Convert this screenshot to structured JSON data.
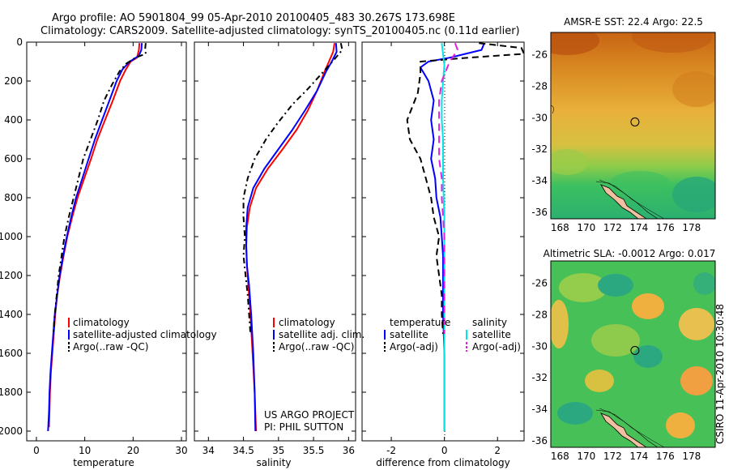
{
  "header": {
    "line1": "Argo profile: AO 5901804_99 05-Apr-2010 20100405_483 30.267S 173.698E",
    "line2": "Climatology: CARS2009. Satellite-adjusted climatology: synTS_20100405.nc (0.11d earlier)"
  },
  "side_stamp": "CSIRO 11-Apr-2010 10:30:48",
  "project_note": [
    "US ARGO PROJECT",
    "PI: PHIL SUTTON"
  ],
  "colors": {
    "climatology": "#ff0000",
    "satellite": "#0000ff",
    "argo": "#000000",
    "sal_satellite": "#00e5e5",
    "sal_argo": "#e020e0"
  },
  "chart_data": [
    {
      "id": "temperature",
      "type": "line",
      "xlabel": "temperature",
      "ylabel": "",
      "xlim": [
        -2,
        31
      ],
      "ylim": [
        2050,
        0
      ],
      "xticks": [
        "0",
        "10",
        "20",
        "30"
      ],
      "xtick_values": [
        0,
        10,
        20,
        30
      ],
      "yticks": [
        "0",
        "200",
        "400",
        "600",
        "800",
        "1000",
        "1200",
        "1400",
        "1600",
        "1800",
        "2000"
      ],
      "ytick_values": [
        0,
        200,
        400,
        600,
        800,
        1000,
        1200,
        1400,
        1600,
        1800,
        2000
      ],
      "legend": [
        "climatology",
        "satellite-adjusted climatology",
        "Argo(..raw -QC)"
      ],
      "series": [
        {
          "name": "climatology",
          "color": "#ff0000",
          "dash": "",
          "points": [
            [
              21.3,
              5
            ],
            [
              21.2,
              40
            ],
            [
              20.8,
              80
            ],
            [
              19.5,
              100
            ],
            [
              18.5,
              140
            ],
            [
              17.3,
              200
            ],
            [
              15.8,
              300
            ],
            [
              14.2,
              400
            ],
            [
              12.6,
              500
            ],
            [
              11.3,
              600
            ],
            [
              9.9,
              700
            ],
            [
              8.5,
              800
            ],
            [
              7.4,
              900
            ],
            [
              6.4,
              1000
            ],
            [
              5.6,
              1100
            ],
            [
              4.9,
              1200
            ],
            [
              4.3,
              1300
            ],
            [
              3.9,
              1400
            ],
            [
              3.6,
              1500
            ],
            [
              3.3,
              1600
            ],
            [
              3.0,
              1700
            ],
            [
              2.8,
              1800
            ],
            [
              2.7,
              1900
            ],
            [
              2.6,
              1980
            ]
          ]
        },
        {
          "name": "satellite-adjusted climatology",
          "color": "#0000ff",
          "dash": "",
          "points": [
            [
              21.8,
              5
            ],
            [
              21.7,
              40
            ],
            [
              21.2,
              70
            ],
            [
              19.3,
              100
            ],
            [
              17.8,
              140
            ],
            [
              16.6,
              200
            ],
            [
              15.1,
              300
            ],
            [
              13.6,
              400
            ],
            [
              12.1,
              500
            ],
            [
              10.8,
              600
            ],
            [
              9.5,
              700
            ],
            [
              8.2,
              800
            ],
            [
              7.2,
              900
            ],
            [
              6.3,
              1000
            ],
            [
              5.5,
              1100
            ],
            [
              4.8,
              1200
            ],
            [
              4.3,
              1300
            ],
            [
              3.8,
              1400
            ],
            [
              3.5,
              1500
            ],
            [
              3.2,
              1600
            ],
            [
              2.9,
              1700
            ],
            [
              2.7,
              1800
            ],
            [
              2.6,
              1900
            ],
            [
              2.4,
              2000
            ]
          ]
        },
        {
          "name": "Argo(..raw -QC)",
          "color": "#000000",
          "dash": "7,4,2,4",
          "points": [
            [
              22.6,
              5
            ],
            [
              22.5,
              30
            ],
            [
              22.6,
              60
            ],
            [
              20.5,
              80
            ],
            [
              18.6,
              110
            ],
            [
              17.2,
              150
            ],
            [
              15.6,
              220
            ],
            [
              14.0,
              300
            ],
            [
              12.7,
              400
            ],
            [
              11.2,
              500
            ],
            [
              9.7,
              600
            ],
            [
              8.7,
              700
            ],
            [
              7.7,
              800
            ],
            [
              6.7,
              900
            ],
            [
              5.8,
              1000
            ],
            [
              5.2,
              1100
            ],
            [
              4.6,
              1200
            ],
            [
              4.2,
              1300
            ],
            [
              3.8,
              1400
            ],
            [
              3.5,
              1500
            ]
          ]
        }
      ]
    },
    {
      "id": "salinity",
      "type": "line",
      "xlabel": "salinity",
      "ylabel": "",
      "xlim": [
        33.8,
        36.1
      ],
      "ylim": [
        2050,
        0
      ],
      "xticks": [
        "34",
        "34.5",
        "35",
        "35.5",
        "36"
      ],
      "xtick_values": [
        34,
        34.5,
        35,
        35.5,
        36
      ],
      "legend": [
        "climatology",
        "satellite adj. clim.",
        "Argo(..raw -QC)"
      ],
      "series": [
        {
          "name": "climatology",
          "color": "#ff0000",
          "dash": "",
          "points": [
            [
              35.8,
              5
            ],
            [
              35.78,
              50
            ],
            [
              35.72,
              100
            ],
            [
              35.66,
              150
            ],
            [
              35.55,
              250
            ],
            [
              35.42,
              350
            ],
            [
              35.26,
              450
            ],
            [
              35.06,
              550
            ],
            [
              34.85,
              650
            ],
            [
              34.68,
              750
            ],
            [
              34.59,
              850
            ],
            [
              34.55,
              950
            ],
            [
              34.54,
              1050
            ],
            [
              34.55,
              1150
            ],
            [
              34.57,
              1250
            ],
            [
              34.6,
              1400
            ],
            [
              34.63,
              1600
            ],
            [
              34.66,
              1800
            ],
            [
              34.68,
              2000
            ]
          ]
        },
        {
          "name": "satellite adj. clim.",
          "color": "#0000ff",
          "dash": "",
          "points": [
            [
              35.82,
              5
            ],
            [
              35.83,
              50
            ],
            [
              35.76,
              100
            ],
            [
              35.68,
              150
            ],
            [
              35.55,
              250
            ],
            [
              35.38,
              350
            ],
            [
              35.2,
              450
            ],
            [
              35.0,
              550
            ],
            [
              34.8,
              650
            ],
            [
              34.64,
              750
            ],
            [
              34.56,
              850
            ],
            [
              34.54,
              950
            ],
            [
              34.54,
              1050
            ],
            [
              34.55,
              1150
            ],
            [
              34.58,
              1250
            ],
            [
              34.61,
              1400
            ],
            [
              34.64,
              1600
            ],
            [
              34.66,
              1800
            ],
            [
              34.67,
              2000
            ]
          ]
        },
        {
          "name": "Argo(..raw -QC)",
          "color": "#000000",
          "dash": "7,4,2,4",
          "points": [
            [
              35.89,
              5
            ],
            [
              35.91,
              40
            ],
            [
              35.77,
              100
            ],
            [
              35.62,
              160
            ],
            [
              35.42,
              240
            ],
            [
              35.2,
              320
            ],
            [
              34.98,
              420
            ],
            [
              34.82,
              500
            ],
            [
              34.66,
              600
            ],
            [
              34.56,
              700
            ],
            [
              34.5,
              800
            ],
            [
              34.5,
              900
            ],
            [
              34.52,
              1000
            ],
            [
              34.5,
              1100
            ],
            [
              34.53,
              1200
            ],
            [
              34.56,
              1300
            ],
            [
              34.58,
              1400
            ],
            [
              34.6,
              1500
            ]
          ]
        }
      ]
    },
    {
      "id": "difference",
      "type": "line",
      "xlabel": "difference from climatology",
      "ylabel": "",
      "xlim": [
        -3.1,
        3.0
      ],
      "ylim": [
        2050,
        0
      ],
      "xticks": [
        "-2",
        "0",
        "2"
      ],
      "xtick_values": [
        -2,
        0,
        2
      ],
      "legend_groups": [
        {
          "title": "temperature",
          "entries": [
            "satellite",
            "Argo(-adj)"
          ]
        },
        {
          "title": "salinity",
          "entries": [
            "satellite",
            "Argo(-adj)"
          ]
        }
      ],
      "series": [
        {
          "name": "temperature satellite",
          "color": "#0000ff",
          "dash": "",
          "points": [
            [
              1.5,
              5
            ],
            [
              1.4,
              40
            ],
            [
              0.8,
              60
            ],
            [
              0.2,
              80
            ],
            [
              -0.6,
              100
            ],
            [
              -0.9,
              130
            ],
            [
              -0.6,
              200
            ],
            [
              -0.4,
              300
            ],
            [
              -0.5,
              400
            ],
            [
              -0.4,
              500
            ],
            [
              -0.5,
              600
            ],
            [
              -0.35,
              700
            ],
            [
              -0.3,
              800
            ],
            [
              -0.15,
              900
            ],
            [
              -0.1,
              1000
            ],
            [
              -0.05,
              1100
            ],
            [
              -0.05,
              1200
            ],
            [
              -0.05,
              1400
            ],
            [
              0.0,
              1600
            ],
            [
              0.0,
              1800
            ],
            [
              0.0,
              2000
            ]
          ]
        },
        {
          "name": "temperature Argo(-adj)",
          "color": "#000000",
          "dash": "8,5",
          "points": [
            [
              1.3,
              5
            ],
            [
              2.9,
              30
            ],
            [
              3.0,
              60
            ],
            [
              0.9,
              80
            ],
            [
              -0.9,
              100
            ],
            [
              -0.9,
              160
            ],
            [
              -1.0,
              260
            ],
            [
              -1.4,
              400
            ],
            [
              -1.3,
              500
            ],
            [
              -0.9,
              600
            ],
            [
              -0.7,
              700
            ],
            [
              -0.5,
              800
            ],
            [
              -0.4,
              900
            ],
            [
              -0.2,
              1000
            ],
            [
              -0.3,
              1100
            ],
            [
              -0.2,
              1200
            ],
            [
              -0.1,
              1300
            ],
            [
              -0.1,
              1400
            ],
            [
              -0.05,
              1500
            ]
          ]
        },
        {
          "name": "salinity satellite",
          "color": "#00e5e5",
          "dash": "",
          "points": [
            [
              -0.1,
              5
            ],
            [
              -0.05,
              60
            ],
            [
              0.0,
              120
            ],
            [
              -0.05,
              200
            ],
            [
              -0.1,
              300
            ],
            [
              -0.1,
              400
            ],
            [
              -0.05,
              500
            ],
            [
              -0.05,
              700
            ],
            [
              0.0,
              900
            ],
            [
              0.0,
              1100
            ],
            [
              0.0,
              1400
            ],
            [
              0.0,
              1700
            ],
            [
              0.0,
              2000
            ]
          ]
        },
        {
          "name": "salinity Argo(-adj)",
          "color": "#e020e0",
          "dash": "9,6",
          "points": [
            [
              0.4,
              5
            ],
            [
              0.5,
              40
            ],
            [
              0.2,
              100
            ],
            [
              -0.1,
              200
            ],
            [
              -0.2,
              300
            ],
            [
              -0.2,
              400
            ],
            [
              -0.2,
              500
            ],
            [
              -0.2,
              600
            ],
            [
              -0.1,
              700
            ],
            [
              -0.1,
              800
            ],
            [
              -0.05,
              900
            ],
            [
              0.0,
              1000
            ],
            [
              0.0,
              1100
            ],
            [
              0.0,
              1200
            ],
            [
              0.0,
              1400
            ],
            [
              0.0,
              1500
            ]
          ]
        }
      ]
    },
    {
      "id": "sst_map",
      "type": "heatmap",
      "title": "AMSR-E SST: 22.4 Argo: 22.5",
      "xlim": [
        167.3,
        179.8
      ],
      "ylim": [
        -36.4,
        -24.6
      ],
      "xticks": [
        "168",
        "170",
        "172",
        "174",
        "176",
        "178"
      ],
      "xtick_values": [
        168,
        170,
        172,
        174,
        176,
        178
      ],
      "yticks": [
        "-26",
        "-28",
        "-30",
        "-32",
        "-34",
        "-36"
      ],
      "ytick_values": [
        -26,
        -28,
        -30,
        -32,
        -34,
        -36
      ],
      "argo_position": [
        173.698,
        -30.267
      ]
    },
    {
      "id": "sla_map",
      "type": "heatmap",
      "title": "Altimetric SLA: -0.0012 Argo: 0.017",
      "xlim": [
        167.3,
        179.8
      ],
      "ylim": [
        -36.4,
        -24.6
      ],
      "xticks": [
        "168",
        "170",
        "172",
        "174",
        "176",
        "178"
      ],
      "xtick_values": [
        168,
        170,
        172,
        174,
        176,
        178
      ],
      "yticks": [
        "-26",
        "-28",
        "-30",
        "-32",
        "-34",
        "-36"
      ],
      "ytick_values": [
        -26,
        -28,
        -30,
        -32,
        -34,
        -36
      ],
      "argo_position": [
        173.698,
        -30.267
      ]
    }
  ]
}
